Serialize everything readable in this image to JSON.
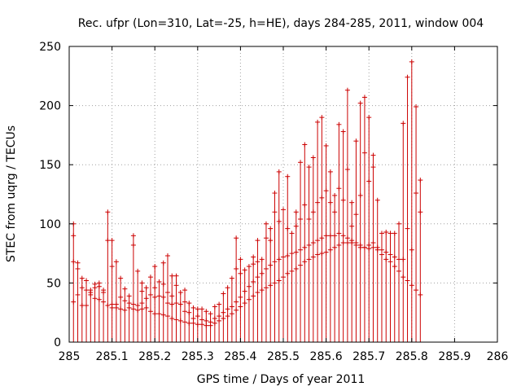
{
  "chart_data": {
    "type": "scatter",
    "title": "Rec. ufpr (Lon=310, Lat=-25, h=HE), days 284-285, 2011, window 004",
    "xlabel": "GPS time / Days of year 2011",
    "ylabel": "STEC from uqrg / TECUs",
    "xlim": [
      285,
      286
    ],
    "ylim": [
      0,
      250
    ],
    "xticks": [
      285,
      285.1,
      285.2,
      285.3,
      285.4,
      285.5,
      285.6,
      285.7,
      285.8,
      285.9,
      286
    ],
    "xtick_labels": [
      "285",
      "285.1",
      "285.2",
      "285.3",
      "285.4",
      "285.5",
      "285.6",
      "285.7",
      "285.8",
      "285.9",
      "286"
    ],
    "yticks": [
      0,
      50,
      100,
      150,
      200,
      250
    ],
    "ytick_labels": [
      "0",
      "50",
      "100",
      "150",
      "200",
      "250"
    ],
    "grid": true,
    "color": "#cc0000",
    "marker": "plus with vertical line to 0",
    "points": [
      {
        "x": 285.01,
        "y": [
          34,
          68,
          90,
          100
        ]
      },
      {
        "x": 285.02,
        "y": [
          40,
          62,
          67
        ]
      },
      {
        "x": 285.03,
        "y": [
          31,
          46,
          54
        ]
      },
      {
        "x": 285.04,
        "y": [
          31,
          44,
          52
        ]
      },
      {
        "x": 285.05,
        "y": [
          40,
          42,
          44
        ]
      },
      {
        "x": 285.06,
        "y": [
          37,
          46,
          49
        ]
      },
      {
        "x": 285.07,
        "y": [
          36,
          47,
          50
        ]
      },
      {
        "x": 285.08,
        "y": [
          34,
          42,
          44
        ]
      },
      {
        "x": 285.09,
        "y": [
          31,
          86,
          110
        ]
      },
      {
        "x": 285.1,
        "y": [
          29,
          32,
          64,
          86
        ]
      },
      {
        "x": 285.11,
        "y": [
          29,
          32,
          68
        ]
      },
      {
        "x": 285.12,
        "y": [
          28,
          38,
          54
        ]
      },
      {
        "x": 285.13,
        "y": [
          27,
          35,
          45
        ]
      },
      {
        "x": 285.14,
        "y": [
          29,
          33,
          39
        ]
      },
      {
        "x": 285.15,
        "y": [
          28,
          32,
          82,
          90
        ]
      },
      {
        "x": 285.16,
        "y": [
          27,
          31,
          60
        ]
      },
      {
        "x": 285.17,
        "y": [
          28,
          33,
          43,
          50
        ]
      },
      {
        "x": 285.18,
        "y": [
          29,
          37,
          46
        ]
      },
      {
        "x": 285.19,
        "y": [
          26,
          40,
          55
        ]
      },
      {
        "x": 285.2,
        "y": [
          24,
          38,
          46,
          64
        ]
      },
      {
        "x": 285.21,
        "y": [
          24,
          39,
          51
        ]
      },
      {
        "x": 285.22,
        "y": [
          23,
          38,
          49,
          67
        ]
      },
      {
        "x": 285.23,
        "y": [
          22,
          33,
          42,
          73
        ]
      },
      {
        "x": 285.24,
        "y": [
          20,
          32,
          39,
          56
        ]
      },
      {
        "x": 285.25,
        "y": [
          19,
          33,
          48,
          56
        ]
      },
      {
        "x": 285.26,
        "y": [
          18,
          32,
          42
        ]
      },
      {
        "x": 285.27,
        "y": [
          17,
          26,
          34,
          44
        ]
      },
      {
        "x": 285.28,
        "y": [
          16,
          25,
          33
        ]
      },
      {
        "x": 285.29,
        "y": [
          16,
          20,
          29
        ]
      },
      {
        "x": 285.3,
        "y": [
          15,
          22,
          28
        ]
      },
      {
        "x": 285.31,
        "y": [
          15,
          19,
          28
        ]
      },
      {
        "x": 285.32,
        "y": [
          14,
          18,
          26
        ]
      },
      {
        "x": 285.33,
        "y": [
          14,
          17,
          24
        ]
      },
      {
        "x": 285.34,
        "y": [
          16,
          20,
          30
        ]
      },
      {
        "x": 285.35,
        "y": [
          18,
          22,
          32
        ]
      },
      {
        "x": 285.36,
        "y": [
          20,
          25,
          41
        ]
      },
      {
        "x": 285.37,
        "y": [
          22,
          28,
          46
        ]
      },
      {
        "x": 285.38,
        "y": [
          24,
          30,
          54
        ]
      },
      {
        "x": 285.39,
        "y": [
          27,
          34,
          62,
          88
        ]
      },
      {
        "x": 285.4,
        "y": [
          30,
          38,
          58,
          70
        ]
      },
      {
        "x": 285.41,
        "y": [
          33,
          43,
          61
        ]
      },
      {
        "x": 285.42,
        "y": [
          36,
          47,
          64
        ]
      },
      {
        "x": 285.43,
        "y": [
          39,
          51,
          66,
          72
        ]
      },
      {
        "x": 285.44,
        "y": [
          42,
          55,
          68,
          86
        ]
      },
      {
        "x": 285.45,
        "y": [
          44,
          58,
          70
        ]
      },
      {
        "x": 285.46,
        "y": [
          46,
          62,
          88,
          100
        ]
      },
      {
        "x": 285.47,
        "y": [
          48,
          65,
          86,
          96
        ]
      },
      {
        "x": 285.48,
        "y": [
          50,
          68,
          110,
          126
        ]
      },
      {
        "x": 285.49,
        "y": [
          52,
          70,
          102,
          144
        ]
      },
      {
        "x": 285.5,
        "y": [
          55,
          72,
          112
        ]
      },
      {
        "x": 285.51,
        "y": [
          58,
          73,
          96,
          140
        ]
      },
      {
        "x": 285.52,
        "y": [
          60,
          75,
          92
        ]
      },
      {
        "x": 285.53,
        "y": [
          62,
          76,
          98,
          110
        ]
      },
      {
        "x": 285.54,
        "y": [
          65,
          78,
          104,
          152
        ]
      },
      {
        "x": 285.55,
        "y": [
          68,
          80,
          116,
          167
        ]
      },
      {
        "x": 285.56,
        "y": [
          70,
          82,
          104,
          148
        ]
      },
      {
        "x": 285.57,
        "y": [
          72,
          84,
          110,
          156
        ]
      },
      {
        "x": 285.58,
        "y": [
          74,
          86,
          118,
          186
        ]
      },
      {
        "x": 285.59,
        "y": [
          75,
          88,
          122,
          190
        ]
      },
      {
        "x": 285.6,
        "y": [
          76,
          90,
          128,
          166
        ]
      },
      {
        "x": 285.61,
        "y": [
          78,
          90,
          118,
          144
        ]
      },
      {
        "x": 285.62,
        "y": [
          80,
          90,
          110,
          124
        ]
      },
      {
        "x": 285.63,
        "y": [
          82,
          92,
          130,
          184
        ]
      },
      {
        "x": 285.64,
        "y": [
          84,
          90,
          120,
          178
        ]
      },
      {
        "x": 285.65,
        "y": [
          84,
          88,
          146,
          213
        ]
      },
      {
        "x": 285.66,
        "y": [
          84,
          86,
          98,
          118
        ]
      },
      {
        "x": 285.67,
        "y": [
          82,
          84,
          108,
          170
        ]
      },
      {
        "x": 285.68,
        "y": [
          82,
          80,
          124,
          202
        ]
      },
      {
        "x": 285.69,
        "y": [
          80,
          80,
          160,
          207
        ]
      },
      {
        "x": 285.7,
        "y": [
          79,
          82,
          136,
          190
        ]
      },
      {
        "x": 285.71,
        "y": [
          80,
          84,
          148,
          158
        ]
      },
      {
        "x": 285.72,
        "y": [
          78,
          80,
          120
        ]
      },
      {
        "x": 285.73,
        "y": [
          74,
          78,
          92
        ]
      },
      {
        "x": 285.74,
        "y": [
          70,
          76,
          93
        ]
      },
      {
        "x": 285.75,
        "y": [
          68,
          74,
          92
        ]
      },
      {
        "x": 285.76,
        "y": [
          64,
          72,
          92
        ]
      },
      {
        "x": 285.77,
        "y": [
          60,
          70,
          100
        ]
      },
      {
        "x": 285.78,
        "y": [
          55,
          70,
          185
        ]
      },
      {
        "x": 285.79,
        "y": [
          52,
          96,
          224
        ]
      },
      {
        "x": 285.8,
        "y": [
          48,
          78,
          237
        ]
      },
      {
        "x": 285.81,
        "y": [
          44,
          126,
          199
        ]
      },
      {
        "x": 285.82,
        "y": [
          40,
          110,
          137
        ]
      }
    ]
  }
}
